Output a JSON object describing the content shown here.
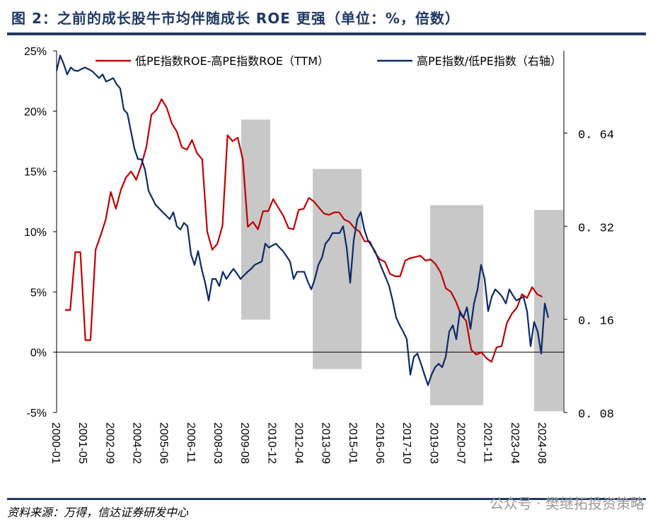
{
  "title": "图 2：之前的成长股牛市均伴随成长 ROE 更强（单位：%，倍数）",
  "source": "资料来源：万得，信达证券研发中心",
  "watermark": "公众号 · 樊继拓投资策略",
  "chart_data": {
    "type": "line",
    "xlim": [
      2000.0,
      2025.64
    ],
    "left_axis": {
      "ylim": [
        -5,
        25
      ],
      "ticks": [
        25,
        20,
        15,
        10,
        5,
        0,
        -5
      ],
      "tick_labels": [
        "25%",
        "20%",
        "15%",
        "10%",
        "5%",
        "0%",
        "-5%"
      ]
    },
    "right_axis": {
      "scale": "log",
      "ylim": [
        0.08,
        1.18
      ],
      "ticks": [
        0.64,
        0.32,
        0.16,
        0.08
      ],
      "tick_labels": [
        "0. 64",
        "0. 32",
        "0. 16",
        "0. 08"
      ]
    },
    "x_tick_labels": [
      "2000-01",
      "2001-05",
      "2002-09",
      "2004-02",
      "2005-06",
      "2006-11",
      "2008-03",
      "2009-08",
      "2010-12",
      "2012-04",
      "2013-09",
      "2015-01",
      "2016-06",
      "2017-10",
      "2019-03",
      "2020-07",
      "2021-11",
      "2023-04",
      "2024-08"
    ],
    "legend": [
      "低PE指数ROE-高PE指数ROE（TTM）",
      "高PE指数/低PE指数（右轴）"
    ],
    "colors": {
      "red": "#c00000",
      "blue": "#0b2a6b",
      "shade": "#c8c8c8"
    },
    "shaded_periods": [
      {
        "x": [
          2009.33,
          2010.8
        ],
        "y": [
          2.7,
          19.3
        ]
      },
      {
        "x": [
          2012.95,
          2015.42
        ],
        "y": [
          -1.4,
          15.2
        ]
      },
      {
        "x": [
          2018.88,
          2021.57
        ],
        "y": [
          -4.4,
          12.2
        ]
      },
      {
        "x": [
          2024.14,
          2025.6
        ],
        "y": [
          -4.9,
          11.8
        ]
      }
    ],
    "series": [
      {
        "name": "低PE指数ROE-高PE指数ROE（TTM）",
        "axis": "left",
        "start": 2000.43,
        "step": 0.2566,
        "values": [
          3.5,
          3.5,
          8.3,
          8.3,
          1,
          1,
          8.5,
          9.7,
          11,
          13.3,
          11.9,
          13.5,
          14.5,
          15.0,
          14.3,
          15.5,
          17.0,
          19.7,
          20.1,
          21.0,
          20.3,
          19.0,
          18.3,
          17.0,
          16.8,
          17.6,
          16.5,
          16.0,
          10.0,
          8.5,
          9.0,
          10.5,
          18.0,
          17.5,
          17.8,
          16.0,
          10.4,
          10.8,
          10.2,
          11.7,
          11.7,
          12.7,
          12.0,
          11.3,
          10.3,
          10.2,
          11.8,
          11.9,
          12.8,
          12.5,
          12.0,
          11.5,
          11.4,
          11.6,
          11.6,
          11.0,
          10.8,
          10.3,
          10.0,
          9.2,
          9.2,
          8.3,
          7.7,
          7.5,
          6.5,
          6.3,
          6.3,
          7.6,
          7.8,
          7.9,
          8.0,
          7.6,
          7.7,
          7.3,
          6.6,
          5.3,
          5.0,
          4.2,
          3.1,
          2.6,
          0.2,
          -0.2,
          0,
          -0.5,
          -0.8,
          0.4,
          0.5,
          2.4,
          3.2,
          3.7,
          4.8,
          4.5,
          5.4,
          4.8,
          4.6
        ]
      },
      {
        "name": "高PE指数/低PE指数（右轴）",
        "axis": "right",
        "start": 2000.0,
        "step": 0.1788,
        "values": [
          1.016,
          1.14,
          1.07,
          0.99,
          1.043,
          1.02,
          1.016,
          1.03,
          1.043,
          1.03,
          1.016,
          0.99,
          0.964,
          0.99,
          0.939,
          0.95,
          0.964,
          0.92,
          0.891,
          0.761,
          0.741,
          0.65,
          0.57,
          0.527,
          0.527,
          0.487,
          0.416,
          0.395,
          0.375,
          0.365,
          0.355,
          0.346,
          0.337,
          0.355,
          0.32,
          0.312,
          0.328,
          0.32,
          0.259,
          0.24,
          0.266,
          0.233,
          0.21,
          0.184,
          0.216,
          0.216,
          0.205,
          0.228,
          0.216,
          0.225,
          0.233,
          0.225,
          0.216,
          0.222,
          0.228,
          0.233,
          0.24,
          0.243,
          0.246,
          0.281,
          0.273,
          0.277,
          0.281,
          0.273,
          0.266,
          0.256,
          0.246,
          0.216,
          0.228,
          0.228,
          0.228,
          0.212,
          0.2,
          0.216,
          0.24,
          0.253,
          0.281,
          0.29,
          0.304,
          0.304,
          0.304,
          0.32,
          0.273,
          0.21,
          0.288,
          0.337,
          0.355,
          0.312,
          0.288,
          0.277,
          0.266,
          0.249,
          0.233,
          0.219,
          0.205,
          0.184,
          0.162,
          0.153,
          0.146,
          0.138,
          0.106,
          0.121,
          0.124,
          0.115,
          0.106,
          0.098,
          0.106,
          0.112,
          0.115,
          0.112,
          0.121,
          0.146,
          0.153,
          0.138,
          0.17,
          0.162,
          0.175,
          0.149,
          0.18,
          0.2,
          0.24,
          0.216,
          0.17,
          0.189,
          0.2,
          0.195,
          0.189,
          0.18,
          0.2,
          0.191,
          0.184,
          0.187,
          0.189,
          0.17,
          0.131,
          0.157,
          0.146,
          0.124,
          0.18,
          0.162
        ]
      }
    ]
  }
}
